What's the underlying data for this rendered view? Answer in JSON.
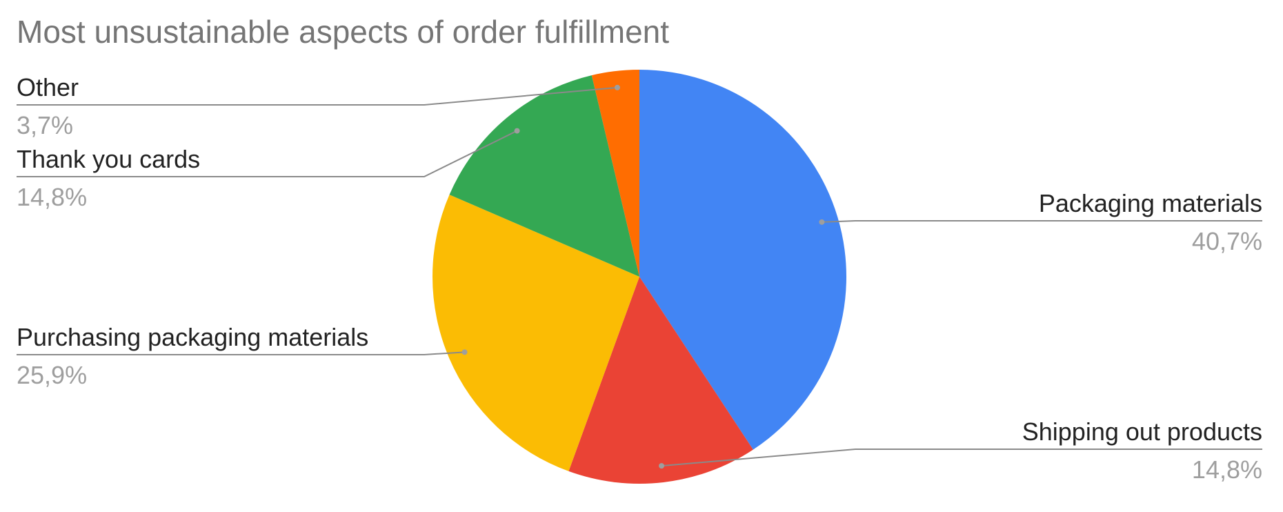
{
  "chart_data": {
    "type": "pie",
    "title": "Most unsustainable aspects of order fulfillment",
    "slices": [
      {
        "label": "Packaging materials",
        "value": 40.7,
        "display": "40,7%",
        "color": "#4285F4",
        "side": "right"
      },
      {
        "label": "Shipping out products",
        "value": 14.8,
        "display": "14,8%",
        "color": "#EA4335",
        "side": "right"
      },
      {
        "label": "Purchasing packaging materials",
        "value": 25.9,
        "display": "25,9%",
        "color": "#FBBC04",
        "side": "left"
      },
      {
        "label": "Thank you cards",
        "value": 14.8,
        "display": "14,8%",
        "color": "#34A853",
        "side": "left"
      },
      {
        "label": "Other",
        "value": 3.7,
        "display": "3,7%",
        "color": "#FF6D01",
        "side": "left"
      }
    ],
    "start": "12 o'clock",
    "direction": "clockwise",
    "legend": "labels with leader lines"
  }
}
